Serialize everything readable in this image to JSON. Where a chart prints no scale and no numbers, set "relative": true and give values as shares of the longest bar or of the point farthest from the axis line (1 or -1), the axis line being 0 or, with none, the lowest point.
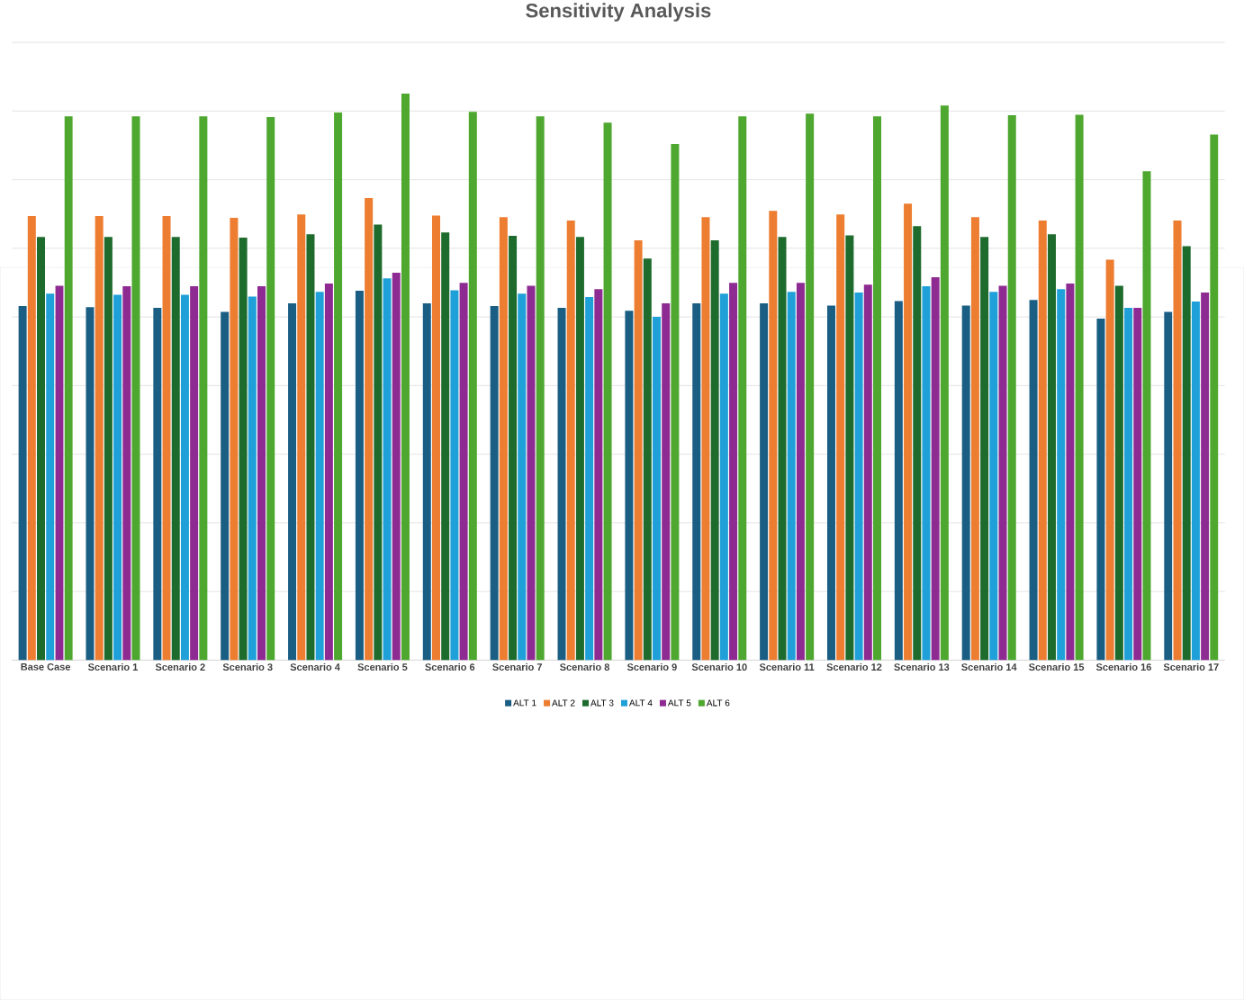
{
  "chart_data": {
    "type": "bar",
    "title": "Sensitivity Analysis",
    "relative": true,
    "grid": "y",
    "legend": "bottom",
    "categories": [
      "Base Case",
      "Scenario 1",
      "Scenario 2",
      "Scenario 3",
      "Scenario 4",
      "Scenario 5",
      "Scenario 6",
      "Scenario 7",
      "Scenario 8",
      "Scenario 9",
      "Scenario 10",
      "Scenario 11",
      "Scenario 12",
      "Scenario 13",
      "Scenario 14",
      "Scenario 15",
      "Scenario 16",
      "Scenario 17"
    ],
    "series": [
      {
        "name": "ALT 1",
        "color": "#1b5e83",
        "values": [
          0.625,
          0.623,
          0.622,
          0.615,
          0.63,
          0.652,
          0.63,
          0.625,
          0.622,
          0.617,
          0.63,
          0.63,
          0.626,
          0.634,
          0.626,
          0.636,
          0.603,
          0.615
        ]
      },
      {
        "name": "ALT 2",
        "color": "#ed7d31",
        "values": [
          0.784,
          0.784,
          0.784,
          0.781,
          0.787,
          0.816,
          0.785,
          0.782,
          0.776,
          0.741,
          0.782,
          0.793,
          0.787,
          0.806,
          0.782,
          0.776,
          0.707,
          0.776
        ]
      },
      {
        "name": "ALT 3",
        "color": "#1e6b2e",
        "values": [
          0.747,
          0.747,
          0.747,
          0.746,
          0.752,
          0.769,
          0.755,
          0.749,
          0.747,
          0.709,
          0.741,
          0.747,
          0.75,
          0.766,
          0.747,
          0.752,
          0.661,
          0.731
        ]
      },
      {
        "name": "ALT 4",
        "color": "#1fa0d8",
        "values": [
          0.647,
          0.645,
          0.645,
          0.642,
          0.65,
          0.674,
          0.653,
          0.647,
          0.641,
          0.606,
          0.647,
          0.65,
          0.649,
          0.66,
          0.65,
          0.655,
          0.622,
          0.633
        ]
      },
      {
        "name": "ALT 5",
        "color": "#8e2b92",
        "values": [
          0.661,
          0.66,
          0.66,
          0.66,
          0.665,
          0.684,
          0.666,
          0.661,
          0.655,
          0.63,
          0.666,
          0.666,
          0.663,
          0.676,
          0.661,
          0.665,
          0.622,
          0.649
        ]
      },
      {
        "name": "ALT 6",
        "color": "#4ea72e",
        "values": [
          0.96,
          0.96,
          0.96,
          0.959,
          0.967,
          1.0,
          0.968,
          0.96,
          0.949,
          0.911,
          0.96,
          0.965,
          0.96,
          0.979,
          0.962,
          0.963,
          0.863,
          0.928
        ]
      }
    ]
  }
}
